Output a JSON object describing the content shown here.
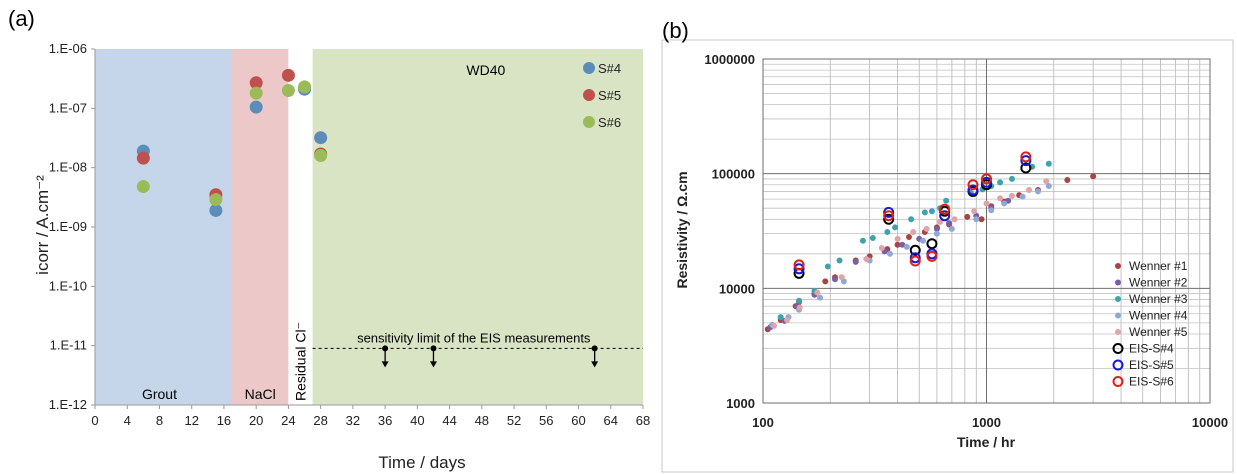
{
  "chart_data": [
    {
      "panel_label": "(a)",
      "type": "scatter",
      "xlabel": "Time / days",
      "ylabel": "icorr / A.cm⁻²",
      "xlim": [
        0,
        68
      ],
      "ylim": [
        1e-12,
        1e-06
      ],
      "yscale": "log",
      "x_ticks": [
        0,
        4,
        8,
        12,
        16,
        20,
        24,
        28,
        32,
        36,
        40,
        44,
        48,
        52,
        56,
        60,
        64,
        68
      ],
      "y_ticks": [
        {
          "value": 1e-12,
          "label": "1.E-12"
        },
        {
          "value": 1e-11,
          "label": "1.E-11"
        },
        {
          "value": 1e-10,
          "label": "1.E-10"
        },
        {
          "value": 1e-09,
          "label": "1.E-09"
        },
        {
          "value": 1e-08,
          "label": "1.E-08"
        },
        {
          "value": 1e-07,
          "label": "1.E-07"
        },
        {
          "value": 1e-06,
          "label": "1.E-06"
        }
      ],
      "regions": [
        {
          "label": "Grout",
          "x0": 0,
          "x1": 17,
          "color": "#c5d6ea"
        },
        {
          "label": "NaCl",
          "x0": 17,
          "x1": 24,
          "color": "#edc8c8"
        },
        {
          "label": "Residual Cl⁻",
          "x0": 24,
          "x1": 27,
          "color": "#ffffff"
        },
        {
          "label": "WD40",
          "x0": 27,
          "x1": 68,
          "color": "#d9e4c5"
        }
      ],
      "series": [
        {
          "name": "S#4",
          "color": "#5b8db8",
          "points": [
            [
              6,
              1.9e-08
            ],
            [
              15,
              1.9e-09
            ],
            [
              20,
              1.05e-07
            ],
            [
              26,
              2.1e-07
            ],
            [
              28,
              3.2e-08
            ]
          ]
        },
        {
          "name": "S#5",
          "color": "#c0504d",
          "points": [
            [
              6,
              1.45e-08
            ],
            [
              15,
              3.5e-09
            ],
            [
              20,
              2.7e-07
            ],
            [
              24,
              3.6e-07
            ],
            [
              28,
              1.7e-08
            ]
          ]
        },
        {
          "name": "S#6",
          "color": "#9bbb59",
          "points": [
            [
              6,
              4.8e-09
            ],
            [
              15,
              2.9e-09
            ],
            [
              20,
              1.8e-07
            ],
            [
              24,
              2e-07
            ],
            [
              26,
              2.3e-07
            ],
            [
              28,
              1.6e-08
            ]
          ]
        }
      ],
      "sensitivity_limit": {
        "value": 9e-12,
        "x_start": 27,
        "label": "sensitivity limit of the EIS measurements",
        "arrows_x": [
          36,
          42,
          62
        ]
      },
      "legend_position": "top-right"
    },
    {
      "panel_label": "(b)",
      "type": "scatter",
      "xlabel": "Time / hr",
      "ylabel": "Resistivity / Ω.cm",
      "xscale": "log",
      "yscale": "log",
      "xlim": [
        100,
        10000
      ],
      "ylim": [
        1000,
        1000000
      ],
      "x_ticks": [
        {
          "value": 100,
          "label": "100"
        },
        {
          "value": 1000,
          "label": "1000"
        },
        {
          "value": 10000,
          "label": "10000"
        }
      ],
      "y_ticks": [
        {
          "value": 1000,
          "label": "1000"
        },
        {
          "value": 10000,
          "label": "10000"
        },
        {
          "value": 100000,
          "label": "100000"
        },
        {
          "value": 1000000,
          "label": "1000000"
        }
      ],
      "grid": true,
      "series": [
        {
          "name": "Wenner #1",
          "marker": "dot",
          "color": "#a84442",
          "points": [
            [
              105,
              4400
            ],
            [
              120,
              5300
            ],
            [
              140,
              7000
            ],
            [
              145,
              7600
            ],
            [
              170,
              9000
            ],
            [
              190,
              11500
            ],
            [
              210,
              12500
            ],
            [
              260,
              17500
            ],
            [
              300,
              19000
            ],
            [
              360,
              22000
            ],
            [
              400,
              24000
            ],
            [
              450,
              28000
            ],
            [
              530,
              31000
            ],
            [
              600,
              34000
            ],
            [
              680,
              36000
            ],
            [
              820,
              42000
            ],
            [
              950,
              40000
            ],
            [
              1050,
              52000
            ],
            [
              1200,
              57000
            ],
            [
              1400,
              65000
            ],
            [
              1700,
              72000
            ],
            [
              2300,
              88000
            ],
            [
              3000,
              95000
            ]
          ]
        },
        {
          "name": "Wenner #2",
          "marker": "dot",
          "color": "#7a5fa6",
          "points": [
            [
              108,
              4600
            ],
            [
              125,
              5200
            ],
            [
              142,
              6900
            ],
            [
              170,
              8800
            ],
            [
              210,
              12000
            ],
            [
              260,
              17000
            ],
            [
              350,
              21000
            ],
            [
              420,
              24000
            ],
            [
              500,
              27000
            ],
            [
              600,
              33000
            ],
            [
              680,
              37000
            ],
            [
              900,
              43000
            ],
            [
              1050,
              50000
            ],
            [
              1250,
              58000
            ]
          ]
        },
        {
          "name": "Wenner #3",
          "marker": "dot",
          "color": "#3ea3ac",
          "points": [
            [
              120,
              5600
            ],
            [
              145,
              7800
            ],
            [
              170,
              9500
            ],
            [
              195,
              15500
            ],
            [
              220,
              17500
            ],
            [
              280,
              26000
            ],
            [
              310,
              27500
            ],
            [
              360,
              31000
            ],
            [
              390,
              34000
            ],
            [
              460,
              40000
            ],
            [
              530,
              46000
            ],
            [
              570,
              47000
            ],
            [
              620,
              50000
            ],
            [
              660,
              58000
            ],
            [
              850,
              68000
            ],
            [
              960,
              73000
            ],
            [
              1050,
              78000
            ],
            [
              1150,
              84000
            ],
            [
              1300,
              90000
            ],
            [
              1600,
              115000
            ],
            [
              1900,
              122000
            ]
          ]
        },
        {
          "name": "Wenner #4",
          "marker": "dot",
          "color": "#8fa9d6",
          "points": [
            [
              110,
              4800
            ],
            [
              130,
              5600
            ],
            [
              145,
              6500
            ],
            [
              180,
              8300
            ],
            [
              230,
              11500
            ],
            [
              300,
              17500
            ],
            [
              370,
              20000
            ],
            [
              440,
              23000
            ],
            [
              520,
              26000
            ],
            [
              600,
              30000
            ],
            [
              700,
              33000
            ],
            [
              900,
              40000
            ],
            [
              1050,
              48000
            ],
            [
              1200,
              55000
            ],
            [
              1450,
              63000
            ],
            [
              1700,
              70000
            ],
            [
              1900,
              78000
            ]
          ]
        },
        {
          "name": "Wenner #5",
          "marker": "dot",
          "color": "#e0a3a8",
          "points": [
            [
              112,
              4700
            ],
            [
              128,
              5300
            ],
            [
              146,
              6800
            ],
            [
              175,
              9200
            ],
            [
              225,
              12500
            ],
            [
              290,
              18000
            ],
            [
              340,
              22500
            ],
            [
              400,
              27000
            ],
            [
              470,
              31000
            ],
            [
              540,
              33000
            ],
            [
              620,
              38000
            ],
            [
              720,
              40000
            ],
            [
              880,
              47000
            ],
            [
              1000,
              55000
            ],
            [
              1150,
              61000
            ],
            [
              1300,
              64000
            ],
            [
              1550,
              72000
            ],
            [
              1850,
              86000
            ]
          ]
        },
        {
          "name": "EIS-S#4",
          "marker": "ring",
          "color": "#000000",
          "points": [
            [
              145,
              13500
            ],
            [
              365,
              40000
            ],
            [
              480,
              21500
            ],
            [
              570,
              24500
            ],
            [
              650,
              47000
            ],
            [
              870,
              70000
            ],
            [
              1000,
              80000
            ],
            [
              1500,
              112000
            ]
          ]
        },
        {
          "name": "EIS-S#5",
          "marker": "ring",
          "color": "#1a1ad6",
          "points": [
            [
              145,
              14800
            ],
            [
              365,
              46000
            ],
            [
              480,
              18500
            ],
            [
              570,
              20000
            ],
            [
              650,
              43000
            ],
            [
              870,
              72000
            ],
            [
              1000,
              84000
            ],
            [
              1500,
              130000
            ]
          ]
        },
        {
          "name": "EIS-S#6",
          "marker": "ring",
          "color": "#e0201a",
          "points": [
            [
              145,
              16000
            ],
            [
              365,
              43000
            ],
            [
              480,
              17300
            ],
            [
              570,
              19000
            ],
            [
              650,
              49000
            ],
            [
              870,
              80000
            ],
            [
              1000,
              90000
            ],
            [
              1500,
              140000
            ]
          ]
        }
      ],
      "legend_position": "bottom-right"
    }
  ]
}
